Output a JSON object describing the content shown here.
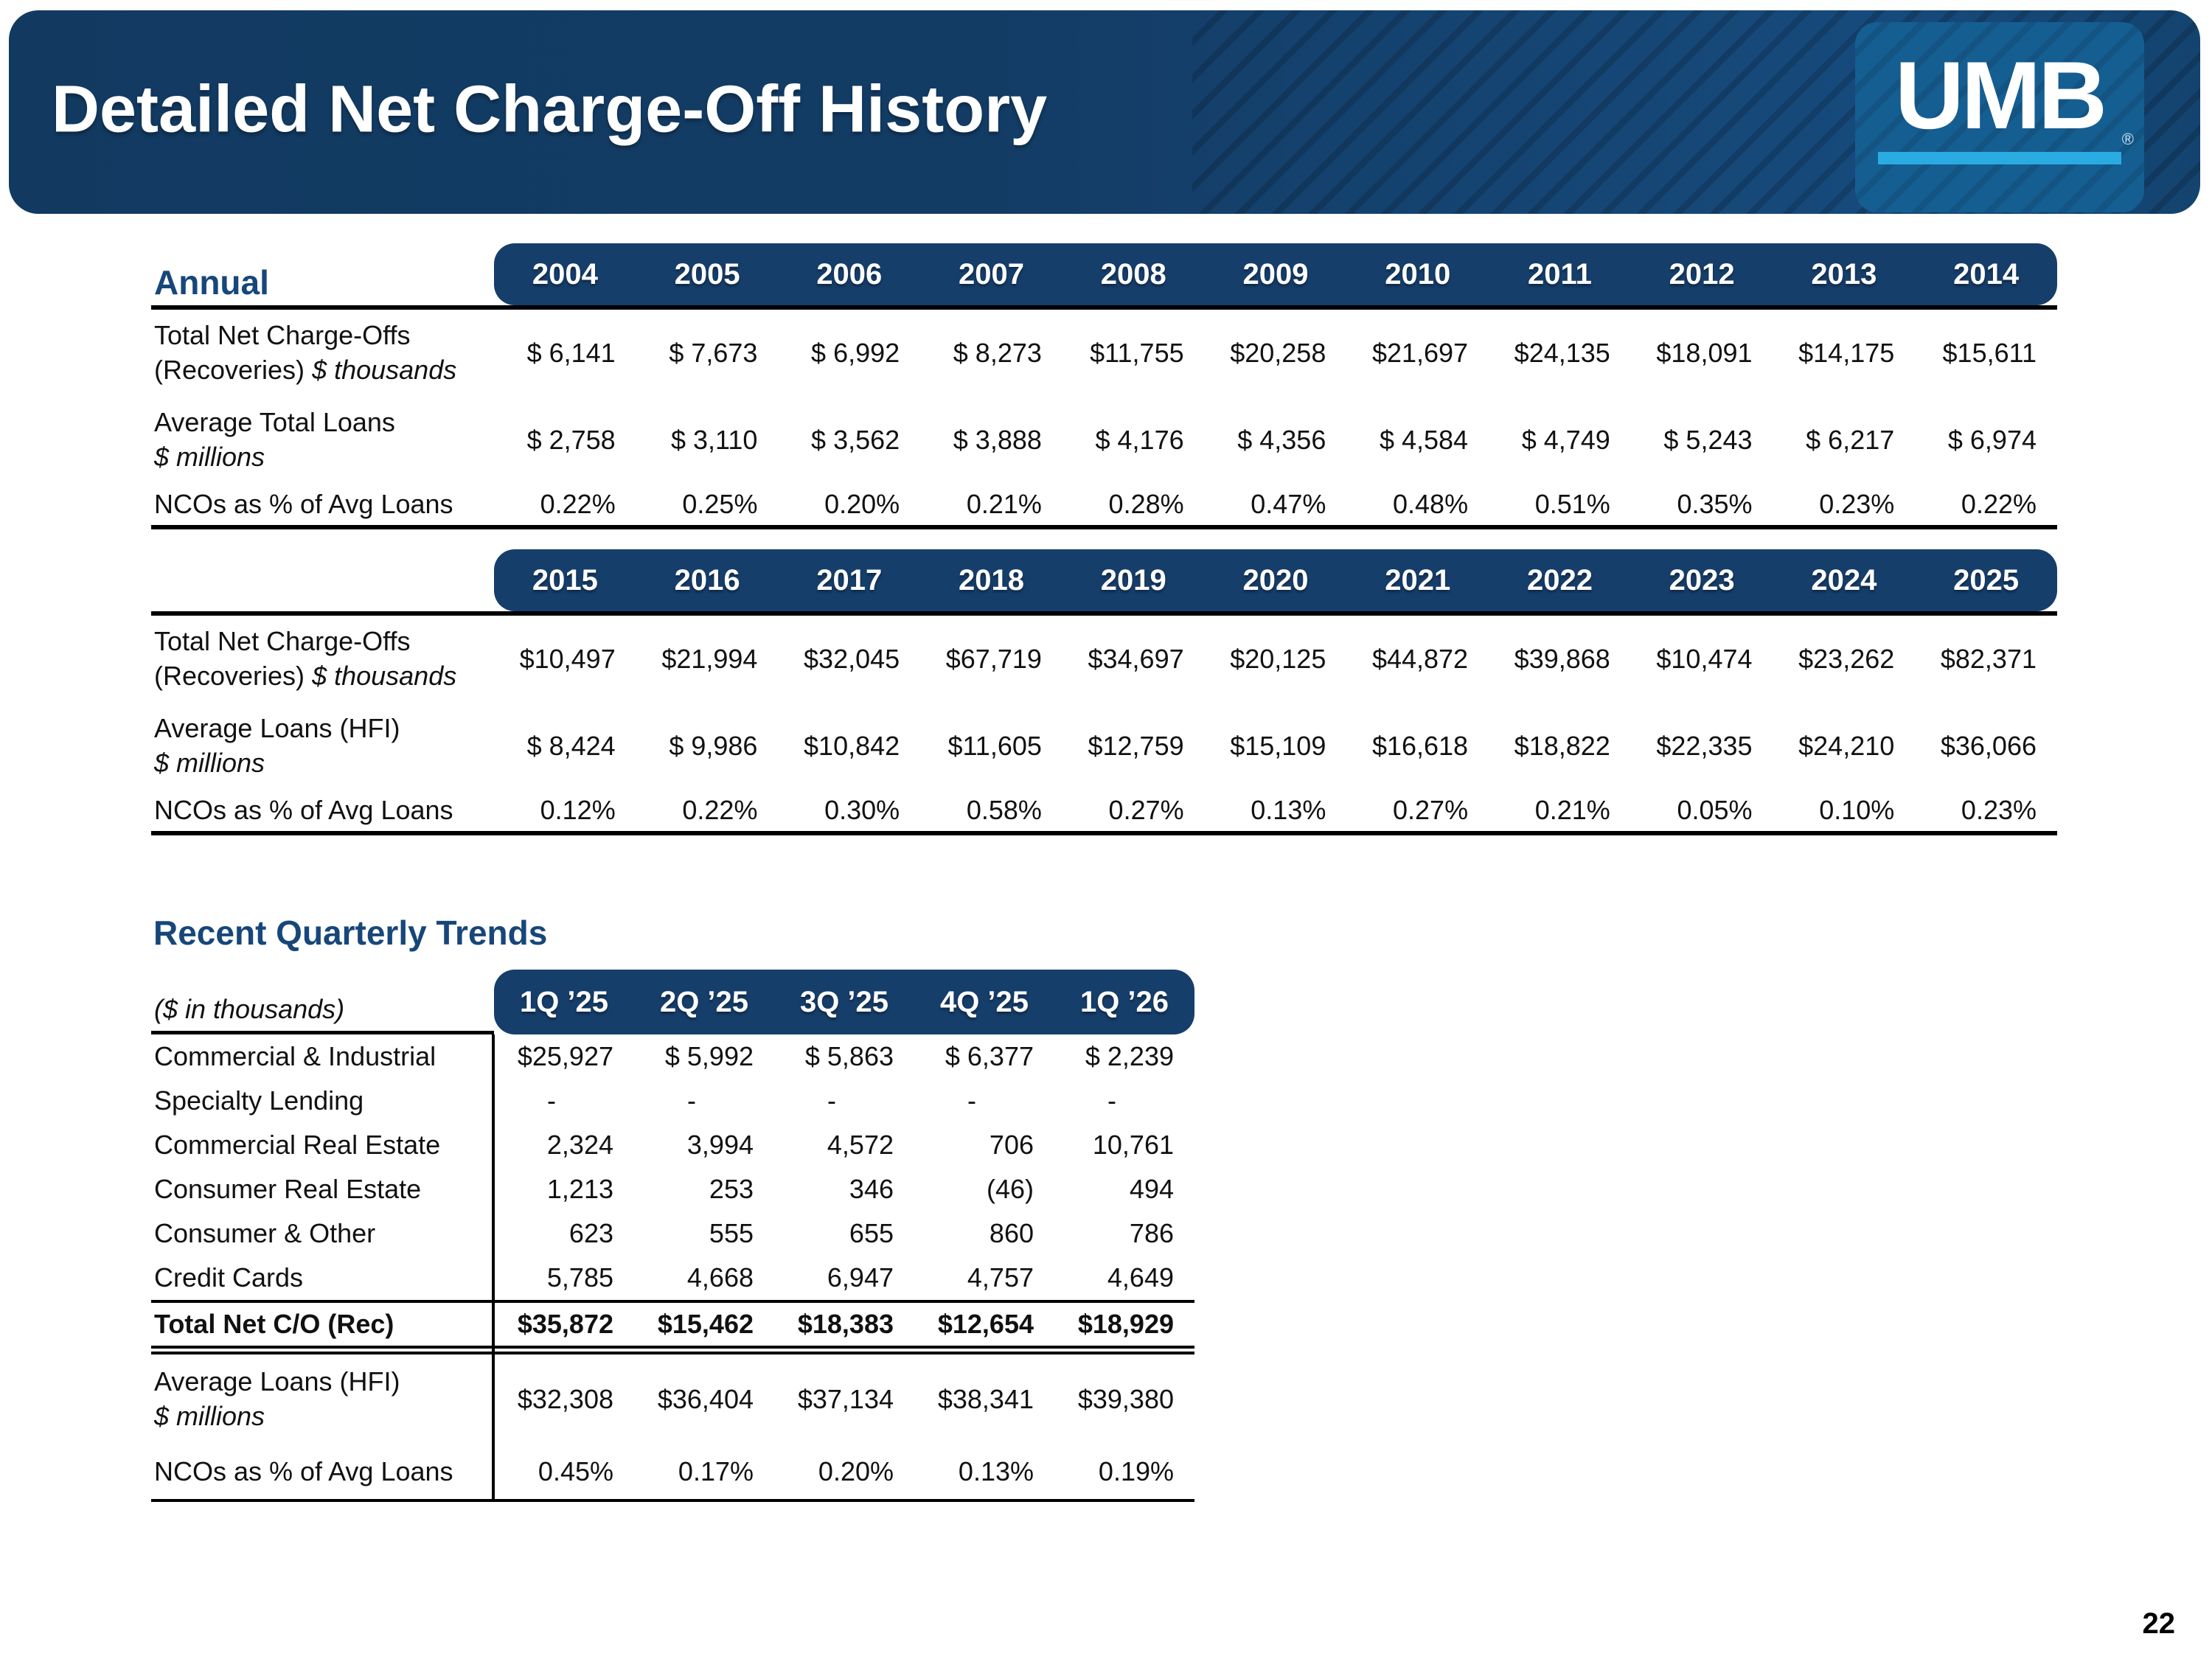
{
  "page": {
    "title": "Detailed Net Charge-Off History",
    "page_number": "22"
  },
  "logo": {
    "text": "UMB",
    "registered": "®"
  },
  "colors": {
    "banner_navy": "#133a62",
    "header_blue": "#163e6a",
    "logo_blue": "#155e92",
    "accent_cyan": "#29abe2",
    "heading_blue": "#17477a",
    "ink": "#111111"
  },
  "annual_tables": [
    {
      "section_label": "Annual",
      "years": [
        "2004",
        "2005",
        "2006",
        "2007",
        "2008",
        "2009",
        "2010",
        "2011",
        "2012",
        "2013",
        "2014"
      ],
      "rows": [
        {
          "label_lines": [
            [
              {
                "t": "Total Net Charge-Offs"
              }
            ],
            [
              {
                "t": "(Recoveries) "
              },
              {
                "t": "$ thousands",
                "i": true
              }
            ]
          ],
          "values": [
            "$ 6,141",
            "$ 7,673",
            "$ 6,992",
            "$ 8,273",
            "$11,755",
            "$20,258",
            "$21,697",
            "$24,135",
            "$18,091",
            "$14,175",
            "$15,611"
          ]
        },
        {
          "label_lines": [
            [
              {
                "t": "Average Total Loans"
              }
            ],
            [
              {
                "t": "$ millions",
                "i": true
              }
            ]
          ],
          "values": [
            "$ 2,758",
            "$ 3,110",
            "$ 3,562",
            "$ 3,888",
            "$ 4,176",
            "$ 4,356",
            "$ 4,584",
            "$ 4,749",
            "$ 5,243",
            "$ 6,217",
            "$ 6,974"
          ]
        },
        {
          "label_lines": [
            [
              {
                "t": "NCOs as % of Avg Loans"
              }
            ]
          ],
          "values": [
            "0.22%",
            "0.25%",
            "0.20%",
            "0.21%",
            "0.28%",
            "0.47%",
            "0.48%",
            "0.51%",
            "0.35%",
            "0.23%",
            "0.22%"
          ]
        }
      ]
    },
    {
      "section_label": "",
      "years": [
        "2015",
        "2016",
        "2017",
        "2018",
        "2019",
        "2020",
        "2021",
        "2022",
        "2023",
        "2024",
        "2025"
      ],
      "rows": [
        {
          "label_lines": [
            [
              {
                "t": "Total Net Charge-Offs"
              }
            ],
            [
              {
                "t": "(Recoveries) "
              },
              {
                "t": "$ thousands",
                "i": true
              }
            ]
          ],
          "values": [
            "$10,497",
            "$21,994",
            "$32,045",
            "$67,719",
            "$34,697",
            "$20,125",
            "$44,872",
            "$39,868",
            "$10,474",
            "$23,262",
            "$82,371"
          ]
        },
        {
          "label_lines": [
            [
              {
                "t": "Average Loans (HFI)"
              }
            ],
            [
              {
                "t": "$ millions",
                "i": true
              }
            ]
          ],
          "values": [
            "$ 8,424",
            "$ 9,986",
            "$10,842",
            "$11,605",
            "$12,759",
            "$15,109",
            "$16,618",
            "$18,822",
            "$22,335",
            "$24,210",
            "$36,066"
          ]
        },
        {
          "label_lines": [
            [
              {
                "t": "NCOs as % of Avg Loans"
              }
            ]
          ],
          "values": [
            "0.12%",
            "0.22%",
            "0.30%",
            "0.58%",
            "0.27%",
            "0.13%",
            "0.27%",
            "0.21%",
            "0.05%",
            "0.10%",
            "0.23%"
          ]
        }
      ]
    }
  ],
  "quarterly": {
    "heading": "Recent Quarterly Trends",
    "unit_label": "($ in thousands)",
    "columns": [
      "1Q ’25",
      "2Q ’25",
      "3Q ’25",
      "4Q ’25",
      "1Q ’26"
    ],
    "rows": [
      {
        "label": "Commercial & Industrial",
        "values": [
          "$25,927",
          "$ 5,992",
          "$ 5,863",
          "$ 6,377",
          "$ 2,239"
        ]
      },
      {
        "label": "Specialty Lending",
        "values": [
          "-",
          "-",
          "-",
          "-",
          "-"
        ]
      },
      {
        "label": "Commercial Real Estate",
        "values": [
          "2,324",
          "3,994",
          "4,572",
          "706",
          "10,761"
        ]
      },
      {
        "label": "Consumer Real Estate",
        "values": [
          "1,213",
          "253",
          "346",
          "(46)",
          "494"
        ]
      },
      {
        "label": "Consumer & Other",
        "values": [
          "623",
          "555",
          "655",
          "860",
          "786"
        ]
      },
      {
        "label": "Credit Cards",
        "values": [
          "5,785",
          "4,668",
          "6,947",
          "4,757",
          "4,649"
        ]
      }
    ],
    "total_row": {
      "label": "Total Net C/O (Rec)",
      "values": [
        "$35,872",
        "$15,462",
        "$18,383",
        "$12,654",
        "$18,929"
      ]
    },
    "footer_rows": [
      {
        "label_lines": [
          [
            {
              "t": "Average Loans (HFI)"
            }
          ],
          [
            {
              "t": "$ millions",
              "i": true
            }
          ]
        ],
        "values": [
          "$32,308",
          "$36,404",
          "$37,134",
          "$38,341",
          "$39,380"
        ]
      },
      {
        "label_lines": [
          [
            {
              "t": "NCOs as % of Avg Loans"
            }
          ]
        ],
        "values": [
          "0.45%",
          "0.17%",
          "0.20%",
          "0.13%",
          "0.19%"
        ]
      }
    ]
  }
}
